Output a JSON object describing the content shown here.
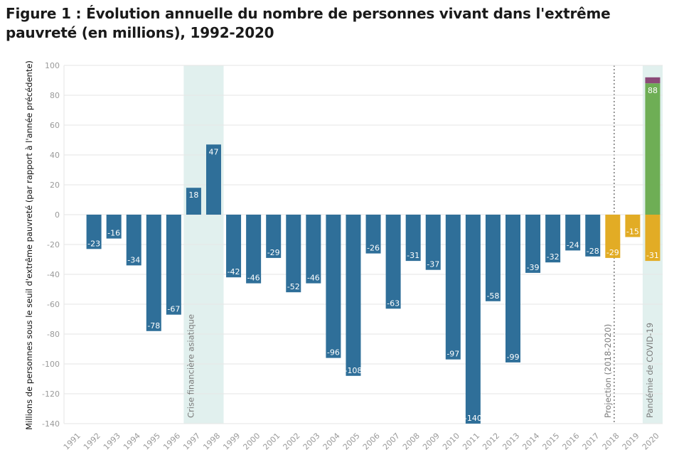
{
  "chart_data": {
    "type": "bar",
    "title": "Figure 1 : Évolution annuelle du nombre de personnes vivant dans l'extrême pauvreté (en millions), 1992-2020",
    "ylabel": "Millions de personnes sous le seuil d'extrême pauvreté (par rapport à l'année précédente)",
    "xlabel": "",
    "ylim": [
      -140,
      100
    ],
    "yticks": [
      100,
      80,
      60,
      40,
      20,
      0,
      -20,
      -40,
      -60,
      -80,
      -100,
      -120,
      -140
    ],
    "grid": true,
    "categories": [
      "1991",
      "1992",
      "1993",
      "1994",
      "1995",
      "1996",
      "1997",
      "1998",
      "1999",
      "2000",
      "2001",
      "2002",
      "2003",
      "2004",
      "2005",
      "2006",
      "2007",
      "2008",
      "2009",
      "2010",
      "2011",
      "2012",
      "2013",
      "2014",
      "2015",
      "2016",
      "2017",
      "2018",
      "2019",
      "2020"
    ],
    "series": [
      {
        "color": "#2f6f99",
        "values": [
          null,
          -23,
          -16,
          -34,
          -78,
          -67,
          18,
          47,
          -42,
          -46,
          -29,
          -52,
          -46,
          -96,
          -108,
          -26,
          -63,
          -31,
          -37,
          -97,
          -140,
          -58,
          -99,
          -39,
          -32,
          -24,
          -28,
          null,
          null,
          null
        ]
      },
      {
        "color": "#e2ac25",
        "values": [
          null,
          null,
          null,
          null,
          null,
          null,
          null,
          null,
          null,
          null,
          null,
          null,
          null,
          null,
          null,
          null,
          null,
          null,
          null,
          null,
          null,
          null,
          null,
          null,
          null,
          null,
          null,
          -29,
          -15,
          -31
        ]
      },
      {
        "color": "#6eae55",
        "values": [
          null,
          null,
          null,
          null,
          null,
          null,
          null,
          null,
          null,
          null,
          null,
          null,
          null,
          null,
          null,
          null,
          null,
          null,
          null,
          null,
          null,
          null,
          null,
          null,
          null,
          null,
          null,
          null,
          null,
          88
        ]
      },
      {
        "color": "#8b4a78",
        "values": [
          null,
          null,
          null,
          null,
          null,
          null,
          null,
          null,
          null,
          null,
          null,
          null,
          null,
          null,
          null,
          null,
          null,
          null,
          null,
          null,
          null,
          null,
          null,
          null,
          null,
          null,
          null,
          null,
          null,
          4
        ]
      }
    ],
    "annotations": [
      {
        "label": "Crise financière asiatique",
        "type": "band",
        "from": "1997",
        "to": "1998",
        "color": "#e1f0ee"
      },
      {
        "label": "Projection (2018-2020)",
        "type": "dashed-line",
        "at": "2018"
      },
      {
        "label": "Pandémie de COVID-19",
        "type": "band",
        "from": "2020",
        "to": "2020",
        "color": "#e1f0ee"
      }
    ]
  }
}
